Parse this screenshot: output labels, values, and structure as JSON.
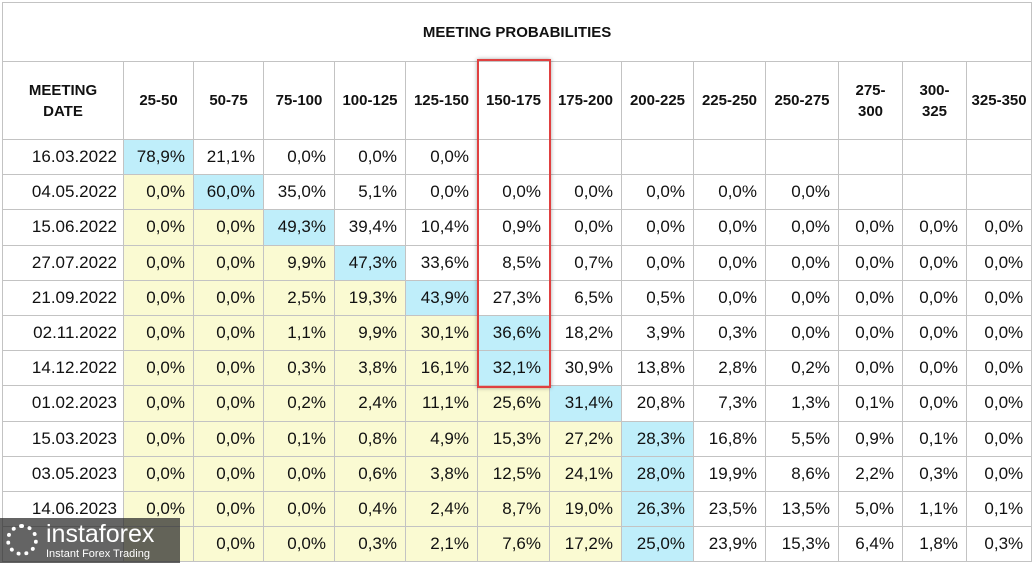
{
  "table": {
    "title": "MEETING PROBABILITIES",
    "columns": [
      "MEETING DATE",
      "25-50",
      "50-75",
      "75-100",
      "100-125",
      "125-150",
      "150-175",
      "175-200",
      "200-225",
      "225-250",
      "250-275",
      "275-300",
      "300-325",
      "325-350"
    ],
    "rows": [
      [
        "16.03.2022",
        "78,9%",
        "21,1%",
        "0,0%",
        "0,0%",
        "0,0%",
        null,
        null,
        null,
        null,
        null,
        null,
        null,
        null
      ],
      [
        "04.05.2022",
        "0,0%",
        "60,0%",
        "35,0%",
        "5,1%",
        "0,0%",
        "0,0%",
        "0,0%",
        "0,0%",
        "0,0%",
        "0,0%",
        null,
        null,
        null
      ],
      [
        "15.06.2022",
        "0,0%",
        "0,0%",
        "49,3%",
        "39,4%",
        "10,4%",
        "0,9%",
        "0,0%",
        "0,0%",
        "0,0%",
        "0,0%",
        "0,0%",
        "0,0%",
        "0,0%"
      ],
      [
        "27.07.2022",
        "0,0%",
        "0,0%",
        "9,9%",
        "47,3%",
        "33,6%",
        "8,5%",
        "0,7%",
        "0,0%",
        "0,0%",
        "0,0%",
        "0,0%",
        "0,0%",
        "0,0%"
      ],
      [
        "21.09.2022",
        "0,0%",
        "0,0%",
        "2,5%",
        "19,3%",
        "43,9%",
        "27,3%",
        "6,5%",
        "0,5%",
        "0,0%",
        "0,0%",
        "0,0%",
        "0,0%",
        "0,0%"
      ],
      [
        "02.11.2022",
        "0,0%",
        "0,0%",
        "1,1%",
        "9,9%",
        "30,1%",
        "36,6%",
        "18,2%",
        "3,9%",
        "0,3%",
        "0,0%",
        "0,0%",
        "0,0%",
        "0,0%"
      ],
      [
        "14.12.2022",
        "0,0%",
        "0,0%",
        "0,3%",
        "3,8%",
        "16,1%",
        "32,1%",
        "30,9%",
        "13,8%",
        "2,8%",
        "0,2%",
        "0,0%",
        "0,0%",
        "0,0%"
      ],
      [
        "01.02.2023",
        "0,0%",
        "0,0%",
        "0,2%",
        "2,4%",
        "11,1%",
        "25,6%",
        "31,4%",
        "20,8%",
        "7,3%",
        "1,3%",
        "0,1%",
        "0,0%",
        "0,0%"
      ],
      [
        "15.03.2023",
        "0,0%",
        "0,0%",
        "0,1%",
        "0,8%",
        "4,9%",
        "15,3%",
        "27,2%",
        "28,3%",
        "16,8%",
        "5,5%",
        "0,9%",
        "0,1%",
        "0,0%"
      ],
      [
        "03.05.2023",
        "0,0%",
        "0,0%",
        "0,0%",
        "0,6%",
        "3,8%",
        "12,5%",
        "24,1%",
        "28,0%",
        "19,9%",
        "8,6%",
        "2,2%",
        "0,3%",
        "0,0%"
      ],
      [
        "14.06.2023",
        "0,0%",
        "0,0%",
        "0,0%",
        "0,4%",
        "2,4%",
        "8,7%",
        "19,0%",
        "26,3%",
        "23,5%",
        "13,5%",
        "5,0%",
        "1,1%",
        "0,1%"
      ],
      [
        null,
        null,
        "0,0%",
        "0,0%",
        "0,3%",
        "2,1%",
        "7,6%",
        "17,2%",
        "25,0%",
        "23,9%",
        "15,3%",
        "6,4%",
        "1,8%",
        "0,3%"
      ]
    ]
  },
  "watermark": {
    "brand": "instaforex",
    "tagline": "Instant Forex Trading"
  }
}
